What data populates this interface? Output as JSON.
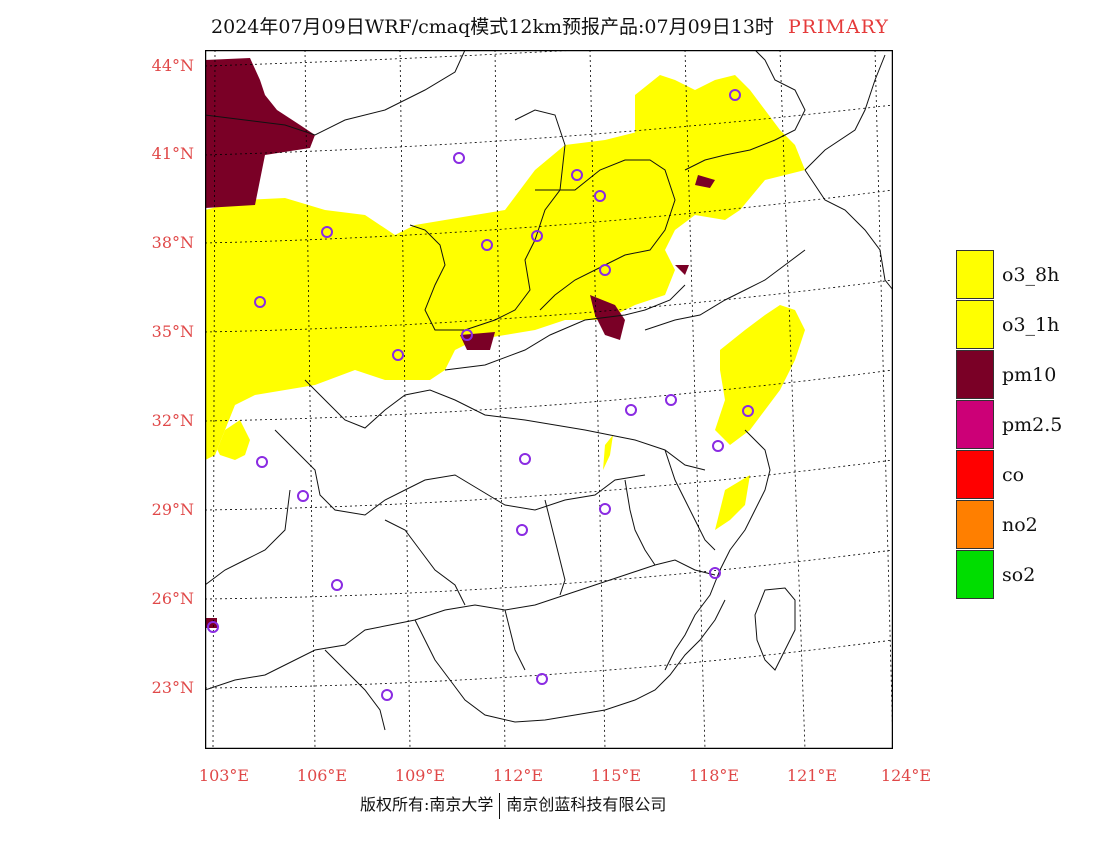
{
  "header": {
    "title": "2024年07月09日WRF/cmaq模式12km预报产品:07月09日13时",
    "tag": "PRIMARY"
  },
  "axes": {
    "lat_labels": [
      "44°N",
      "41°N",
      "38°N",
      "35°N",
      "32°N",
      "29°N",
      "26°N",
      "23°N"
    ],
    "lon_labels": [
      "103°E",
      "106°E",
      "109°E",
      "112°E",
      "115°E",
      "118°E",
      "121°E",
      "124°E"
    ]
  },
  "legend": {
    "items": [
      {
        "label": "o3_8h",
        "color": "#ffff00"
      },
      {
        "label": "o3_1h",
        "color": "#ffff00"
      },
      {
        "label": "pm10",
        "color": "#7a0026"
      },
      {
        "label": "pm2.5",
        "color": "#cc0077"
      },
      {
        "label": "co",
        "color": "#ff0000"
      },
      {
        "label": "no2",
        "color": "#ff7f00"
      },
      {
        "label": "so2",
        "color": "#00dd00"
      }
    ]
  },
  "map": {
    "primary_pollutant_color": "#ffff00",
    "pm10_color": "#7a0026",
    "station_marker_color": "#8a2be2"
  },
  "footer": {
    "left": "版权所有:南京大学",
    "right": "南京创蓝科技有限公司"
  }
}
